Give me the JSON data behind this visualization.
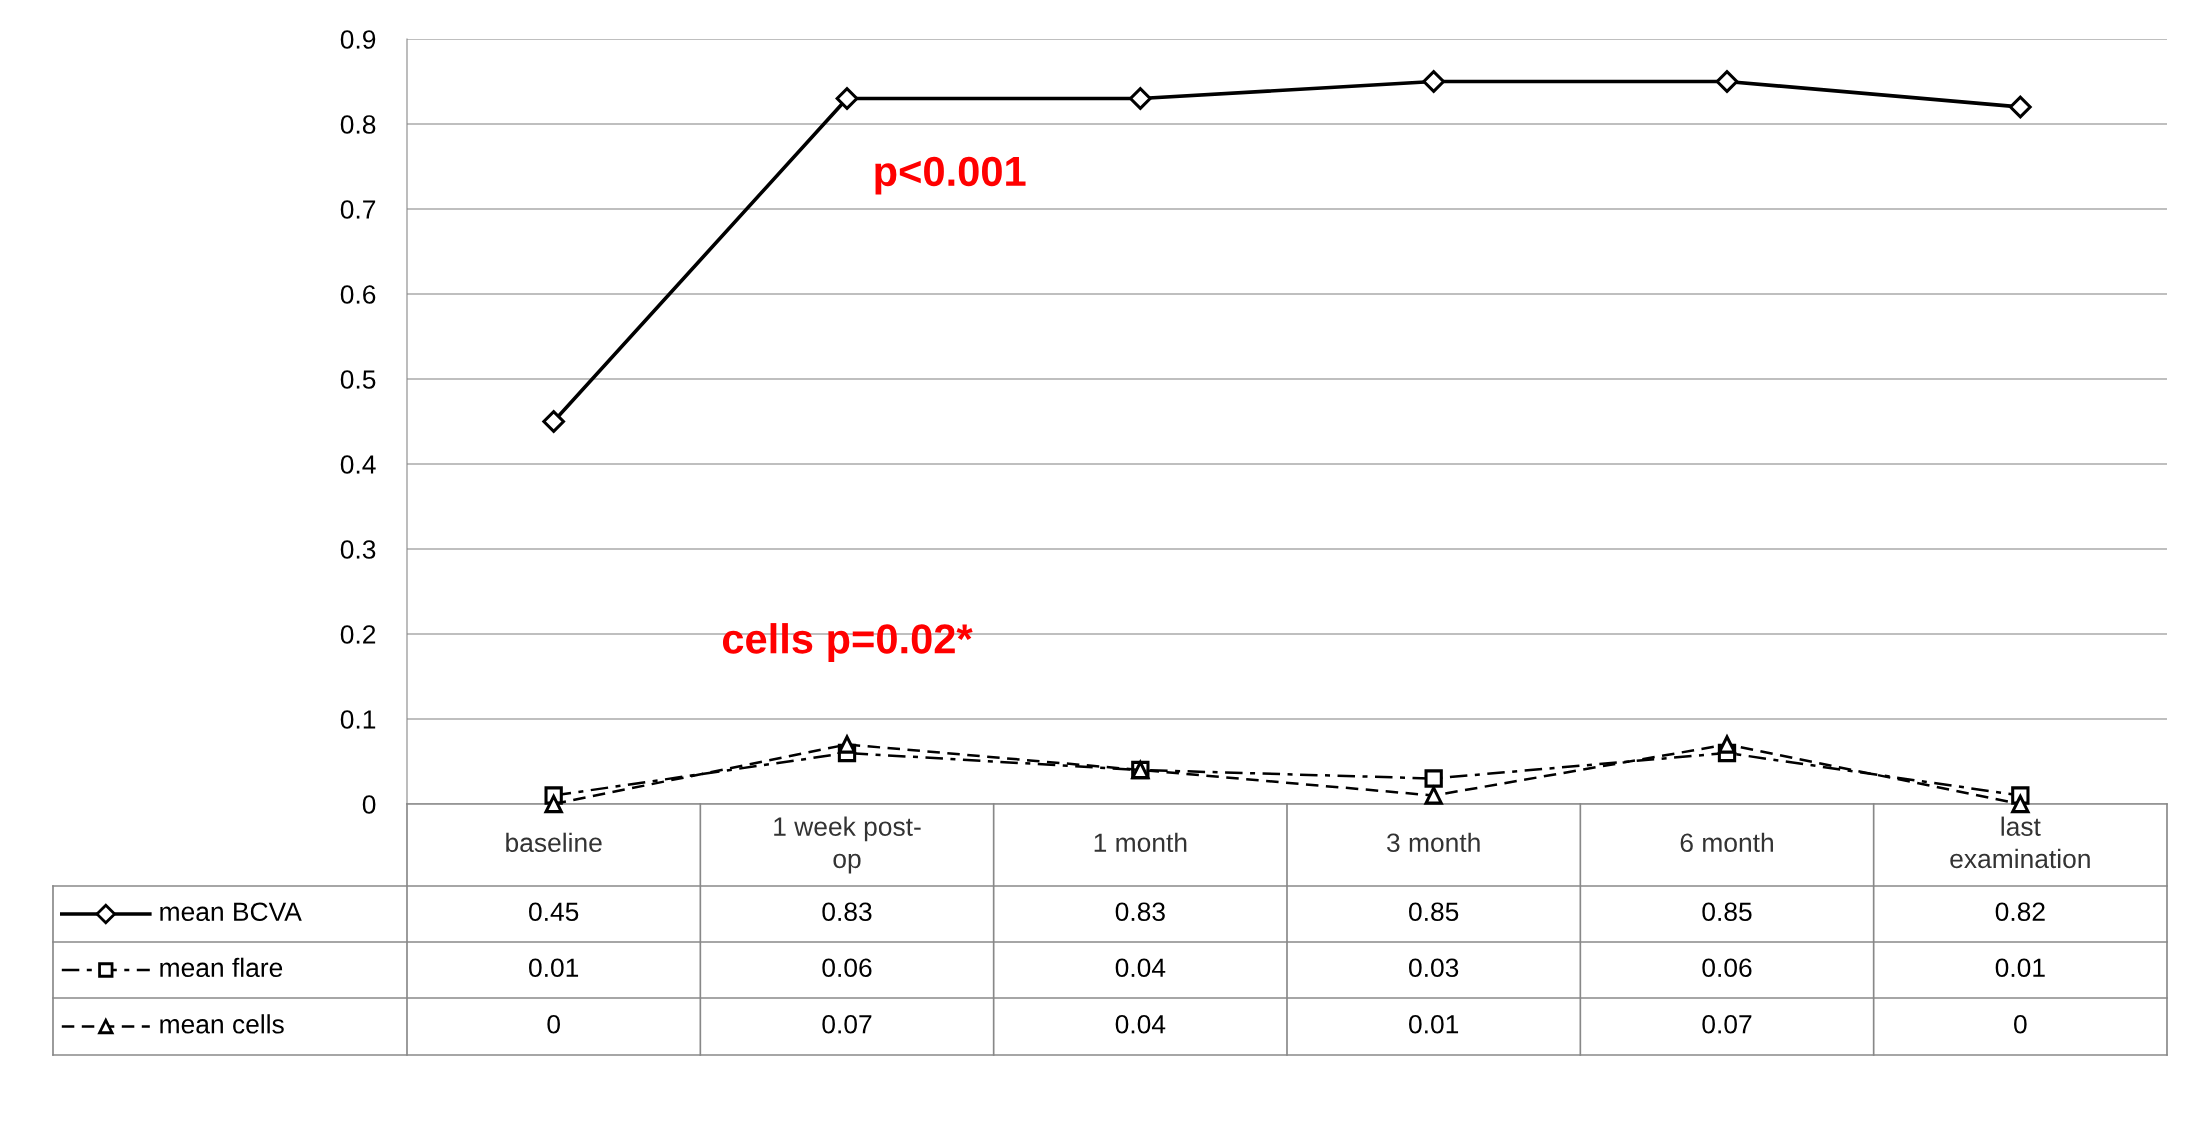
{
  "chart_data": {
    "type": "line",
    "categories": [
      "baseline",
      "1 week post-\nop",
      "1 month",
      "3 month",
      "6 month",
      "last\nexamination"
    ],
    "series": [
      {
        "name": "mean BCVA",
        "color": "#000000",
        "marker": "diamond",
        "line_style": "solid",
        "values": [
          0.45,
          0.83,
          0.83,
          0.85,
          0.85,
          0.82
        ]
      },
      {
        "name": "mean flare",
        "color": "#000000",
        "marker": "square",
        "line_style": "dashdot",
        "values": [
          0.01,
          0.06,
          0.04,
          0.03,
          0.06,
          0.01
        ]
      },
      {
        "name": "mean cells",
        "color": "#000000",
        "marker": "triangle",
        "line_style": "dashed",
        "values": [
          0,
          0.07,
          0.04,
          0.01,
          0.07,
          0
        ]
      }
    ],
    "ylim": [
      0,
      0.9
    ],
    "yticks": [
      0,
      0.1,
      0.2,
      0.3,
      0.4,
      0.5,
      0.6,
      0.7,
      0.8,
      0.9
    ],
    "grid": "y",
    "legend": "bottom",
    "data_labels": true,
    "annotations": [
      "p<0.001",
      "cells p=0.02*"
    ]
  }
}
